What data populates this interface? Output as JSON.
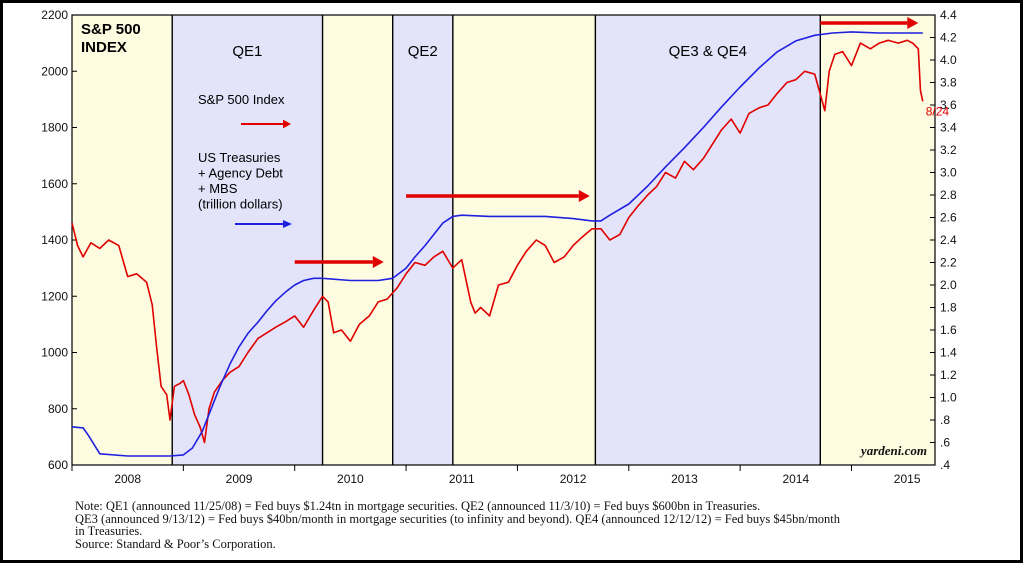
{
  "chart_data": {
    "type": "line",
    "title": "S&P 500 INDEX",
    "title_lines": [
      "S&P 500",
      "INDEX"
    ],
    "x_ticks": [
      "2008",
      "2009",
      "2010",
      "2011",
      "2012",
      "2013",
      "2014",
      "2015"
    ],
    "xlim": [
      2008.0,
      2015.75
    ],
    "y_left": {
      "ylim": [
        600,
        2200
      ],
      "ticks": [
        "600",
        "800",
        "1000",
        "1200",
        "1400",
        "1600",
        "1800",
        "2000",
        "2200"
      ]
    },
    "y_right": {
      "ylim": [
        0.4,
        4.4
      ],
      "ticks": [
        ".4",
        ".6",
        ".8",
        "1.0",
        "1.2",
        "1.4",
        "1.6",
        "1.8",
        "2.0",
        "2.2",
        "2.4",
        "2.6",
        "2.8",
        "3.0",
        "3.2",
        "3.4",
        "3.6",
        "3.8",
        "4.0",
        "4.2",
        "4.4"
      ]
    },
    "periods": [
      {
        "label": "",
        "start": 2008.0,
        "end": 2008.9,
        "shade": "#fdfbe0"
      },
      {
        "label": "QE1",
        "start": 2008.9,
        "end": 2010.25,
        "shade": "#e3e3fa"
      },
      {
        "label": "",
        "start": 2010.25,
        "end": 2010.88,
        "shade": "#fdfbe0"
      },
      {
        "label": "QE2",
        "start": 2010.88,
        "end": 2011.42,
        "shade": "#e3e3fa"
      },
      {
        "label": "",
        "start": 2011.42,
        "end": 2012.7,
        "shade": "#fdfbe0"
      },
      {
        "label": "QE3 & QE4",
        "start": 2012.7,
        "end": 2014.72,
        "shade": "#e3e3fa"
      },
      {
        "label": "",
        "start": 2014.72,
        "end": 2015.75,
        "shade": "#fdfbe0"
      }
    ],
    "series": [
      {
        "name": "S&P 500 Index",
        "axis": "left",
        "color": "#e00000",
        "points": [
          [
            2008.0,
            1460
          ],
          [
            2008.05,
            1380
          ],
          [
            2008.1,
            1340
          ],
          [
            2008.17,
            1390
          ],
          [
            2008.25,
            1370
          ],
          [
            2008.33,
            1400
          ],
          [
            2008.42,
            1380
          ],
          [
            2008.5,
            1270
          ],
          [
            2008.58,
            1280
          ],
          [
            2008.67,
            1250
          ],
          [
            2008.72,
            1170
          ],
          [
            2008.76,
            1020
          ],
          [
            2008.8,
            880
          ],
          [
            2008.85,
            850
          ],
          [
            2008.88,
            760
          ],
          [
            2008.92,
            880
          ],
          [
            2008.97,
            890
          ],
          [
            2009.0,
            900
          ],
          [
            2009.05,
            850
          ],
          [
            2009.1,
            780
          ],
          [
            2009.15,
            735
          ],
          [
            2009.19,
            680
          ],
          [
            2009.23,
            800
          ],
          [
            2009.28,
            860
          ],
          [
            2009.35,
            900
          ],
          [
            2009.42,
            930
          ],
          [
            2009.5,
            950
          ],
          [
            2009.58,
            1000
          ],
          [
            2009.67,
            1050
          ],
          [
            2009.75,
            1070
          ],
          [
            2009.83,
            1090
          ],
          [
            2009.92,
            1110
          ],
          [
            2010.0,
            1130
          ],
          [
            2010.08,
            1090
          ],
          [
            2010.17,
            1150
          ],
          [
            2010.25,
            1200
          ],
          [
            2010.3,
            1180
          ],
          [
            2010.35,
            1070
          ],
          [
            2010.42,
            1080
          ],
          [
            2010.5,
            1040
          ],
          [
            2010.58,
            1100
          ],
          [
            2010.67,
            1130
          ],
          [
            2010.75,
            1180
          ],
          [
            2010.83,
            1190
          ],
          [
            2010.92,
            1230
          ],
          [
            2011.0,
            1280
          ],
          [
            2011.08,
            1320
          ],
          [
            2011.17,
            1310
          ],
          [
            2011.25,
            1340
          ],
          [
            2011.33,
            1360
          ],
          [
            2011.42,
            1300
          ],
          [
            2011.5,
            1330
          ],
          [
            2011.58,
            1180
          ],
          [
            2011.62,
            1140
          ],
          [
            2011.67,
            1160
          ],
          [
            2011.75,
            1130
          ],
          [
            2011.83,
            1240
          ],
          [
            2011.92,
            1250
          ],
          [
            2012.0,
            1310
          ],
          [
            2012.08,
            1360
          ],
          [
            2012.17,
            1400
          ],
          [
            2012.25,
            1380
          ],
          [
            2012.33,
            1320
          ],
          [
            2012.42,
            1340
          ],
          [
            2012.5,
            1380
          ],
          [
            2012.58,
            1410
          ],
          [
            2012.67,
            1440
          ],
          [
            2012.75,
            1440
          ],
          [
            2012.83,
            1400
          ],
          [
            2012.92,
            1420
          ],
          [
            2013.0,
            1480
          ],
          [
            2013.08,
            1520
          ],
          [
            2013.17,
            1560
          ],
          [
            2013.25,
            1590
          ],
          [
            2013.33,
            1640
          ],
          [
            2013.42,
            1620
          ],
          [
            2013.5,
            1680
          ],
          [
            2013.58,
            1650
          ],
          [
            2013.67,
            1690
          ],
          [
            2013.75,
            1740
          ],
          [
            2013.83,
            1790
          ],
          [
            2013.92,
            1830
          ],
          [
            2014.0,
            1780
          ],
          [
            2014.08,
            1850
          ],
          [
            2014.17,
            1870
          ],
          [
            2014.25,
            1880
          ],
          [
            2014.33,
            1920
          ],
          [
            2014.42,
            1960
          ],
          [
            2014.5,
            1970
          ],
          [
            2014.58,
            2000
          ],
          [
            2014.67,
            1990
          ],
          [
            2014.76,
            1860
          ],
          [
            2014.8,
            2000
          ],
          [
            2014.85,
            2060
          ],
          [
            2014.92,
            2070
          ],
          [
            2015.0,
            2020
          ],
          [
            2015.08,
            2100
          ],
          [
            2015.17,
            2080
          ],
          [
            2015.25,
            2100
          ],
          [
            2015.33,
            2110
          ],
          [
            2015.42,
            2100
          ],
          [
            2015.5,
            2110
          ],
          [
            2015.55,
            2100
          ],
          [
            2015.6,
            2080
          ],
          [
            2015.62,
            1930
          ],
          [
            2015.64,
            1893
          ]
        ]
      },
      {
        "name": "US Treasuries + Agency Debt + MBS (trillion dollars)",
        "axis": "right",
        "color": "#2020e0",
        "points": [
          [
            2008.0,
            0.74
          ],
          [
            2008.1,
            0.73
          ],
          [
            2008.15,
            0.66
          ],
          [
            2008.25,
            0.5
          ],
          [
            2008.5,
            0.48
          ],
          [
            2008.75,
            0.48
          ],
          [
            2008.88,
            0.48
          ],
          [
            2009.0,
            0.49
          ],
          [
            2009.08,
            0.55
          ],
          [
            2009.17,
            0.7
          ],
          [
            2009.25,
            0.9
          ],
          [
            2009.33,
            1.1
          ],
          [
            2009.42,
            1.3
          ],
          [
            2009.5,
            1.45
          ],
          [
            2009.58,
            1.57
          ],
          [
            2009.67,
            1.67
          ],
          [
            2009.75,
            1.77
          ],
          [
            2009.83,
            1.86
          ],
          [
            2009.92,
            1.94
          ],
          [
            2010.0,
            2.0
          ],
          [
            2010.08,
            2.04
          ],
          [
            2010.17,
            2.06
          ],
          [
            2010.25,
            2.06
          ],
          [
            2010.5,
            2.04
          ],
          [
            2010.75,
            2.04
          ],
          [
            2010.88,
            2.06
          ],
          [
            2011.0,
            2.15
          ],
          [
            2011.08,
            2.25
          ],
          [
            2011.17,
            2.35
          ],
          [
            2011.25,
            2.45
          ],
          [
            2011.33,
            2.55
          ],
          [
            2011.42,
            2.61
          ],
          [
            2011.5,
            2.62
          ],
          [
            2011.75,
            2.61
          ],
          [
            2012.0,
            2.61
          ],
          [
            2012.25,
            2.61
          ],
          [
            2012.5,
            2.59
          ],
          [
            2012.67,
            2.57
          ],
          [
            2012.75,
            2.57
          ],
          [
            2012.83,
            2.62
          ],
          [
            2013.0,
            2.72
          ],
          [
            2013.17,
            2.88
          ],
          [
            2013.33,
            3.05
          ],
          [
            2013.5,
            3.22
          ],
          [
            2013.67,
            3.4
          ],
          [
            2013.83,
            3.58
          ],
          [
            2014.0,
            3.76
          ],
          [
            2014.17,
            3.93
          ],
          [
            2014.33,
            4.07
          ],
          [
            2014.5,
            4.17
          ],
          [
            2014.67,
            4.22
          ],
          [
            2014.83,
            4.24
          ],
          [
            2015.0,
            4.25
          ],
          [
            2015.25,
            4.24
          ],
          [
            2015.5,
            4.24
          ],
          [
            2015.64,
            4.24
          ]
        ]
      }
    ],
    "legend": {
      "sp500_label": "S&P 500 Index",
      "treasury_lines": [
        "US Treasuries",
        "+ Agency Debt",
        "+ MBS",
        "(trillion dollars)"
      ]
    },
    "annotations": {
      "last_date": "8/24",
      "credit": "yardeni.com"
    },
    "arrows_color": "#e00000"
  },
  "note_lines": [
    "Note: QE1 (announced 11/25/08) = Fed buys $1.24tn in mortgage securities. QE2 (announced 11/3/10) = Fed buys $600bn in Treasuries.",
    "QE3 (announced 9/13/12) = Fed buys $40bn/month in mortgage securities (to infinity and beyond). QE4 (announced 12/12/12) = Fed buys $45bn/month",
    "in Treasuries.",
    "Source: Standard & Poor’s Corporation."
  ]
}
